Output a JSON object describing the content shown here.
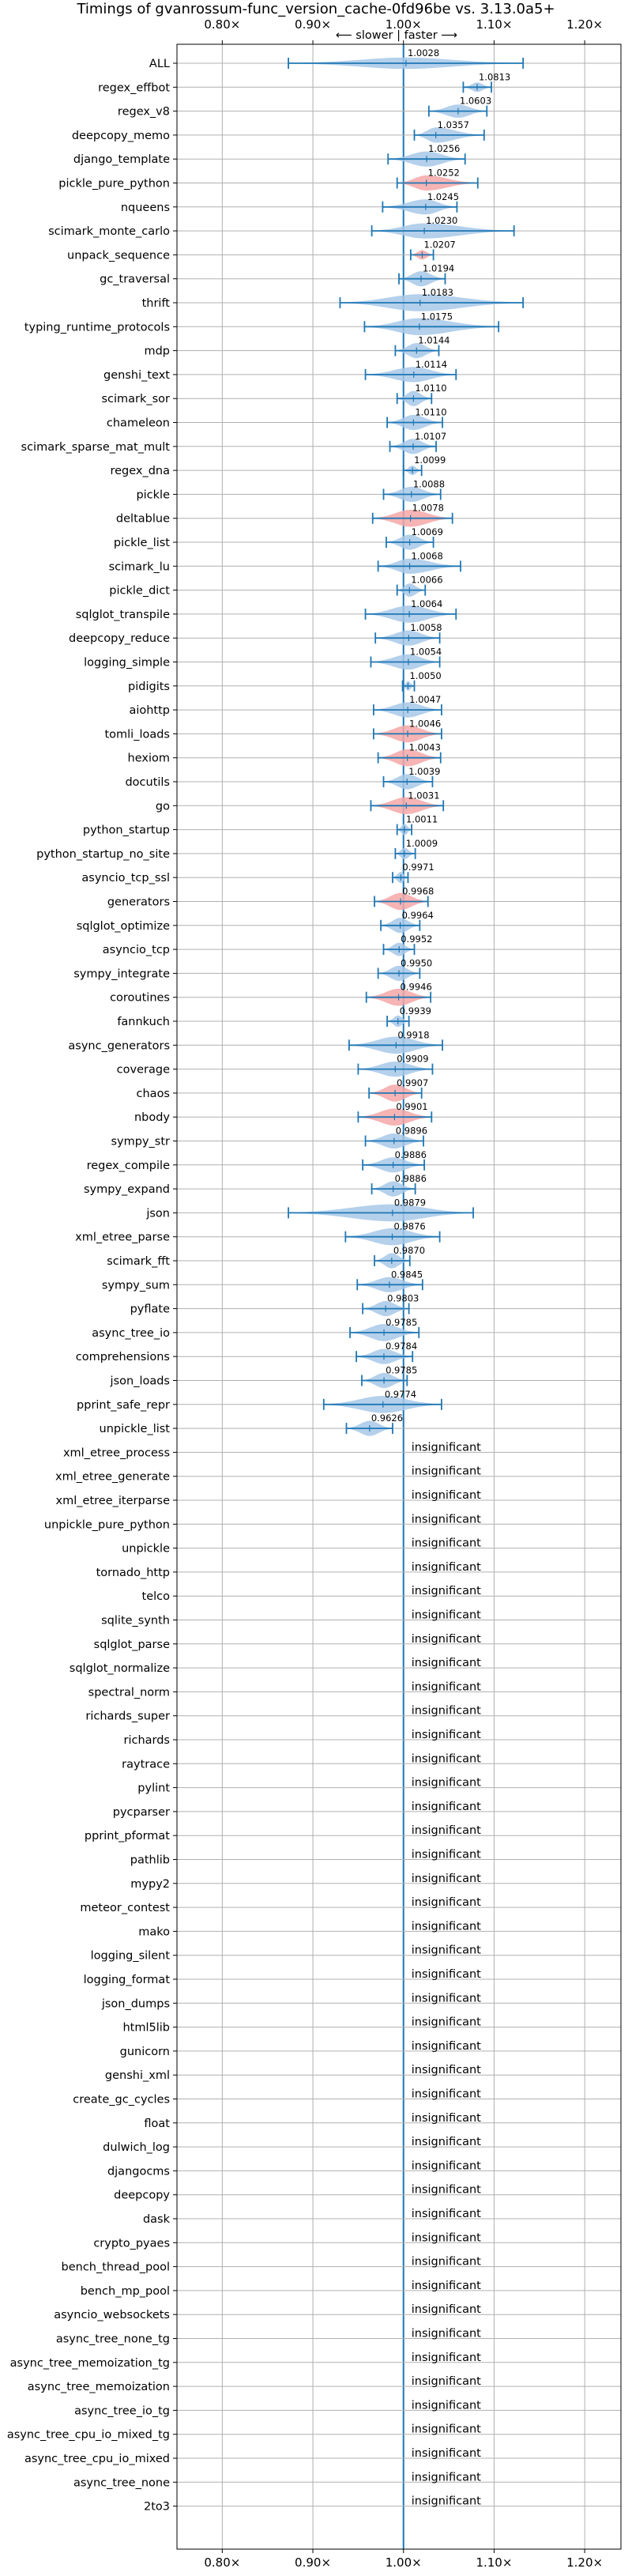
{
  "chart_data": {
    "type": "violin",
    "title": "Timings of gvanrossum-func_version_cache-0fd96be vs. 3.13.0a5+",
    "direction_label": "⟵ slower | faster ⟶",
    "xlim": [
      0.75,
      1.24
    ],
    "x_ticks": [
      0.8,
      0.9,
      1.0,
      1.1,
      1.2
    ],
    "x_tick_labels": [
      "0.80×",
      "0.90×",
      "1.00×",
      "1.10×",
      "1.20×"
    ],
    "grid": true,
    "colors": {
      "faster": "#a7c8e8",
      "slower": "#f4a7a7",
      "line": "#1f77b4",
      "grid": "#b0b0b0"
    },
    "insignificant_label": "insignificant",
    "benchmarks": [
      {
        "name": "ALL",
        "value": 1.0028,
        "label": "1.0028",
        "lo": 0.873,
        "hi": 1.132,
        "width": 0.6,
        "color": "faster"
      },
      {
        "name": "regex_effbot",
        "value": 1.0813,
        "label": "1.0813",
        "lo": 1.066,
        "hi": 1.097,
        "width": 0.5,
        "color": "faster"
      },
      {
        "name": "regex_v8",
        "value": 1.0603,
        "label": "1.0603",
        "lo": 1.028,
        "hi": 1.092,
        "width": 0.7,
        "color": "faster"
      },
      {
        "name": "deepcopy_memo",
        "value": 1.0357,
        "label": "1.0357",
        "lo": 1.012,
        "hi": 1.089,
        "width": 0.8,
        "color": "faster"
      },
      {
        "name": "django_template",
        "value": 1.0256,
        "label": "1.0256",
        "lo": 0.983,
        "hi": 1.068,
        "width": 0.8,
        "color": "faster"
      },
      {
        "name": "pickle_pure_python",
        "value": 1.0252,
        "label": "1.0252",
        "lo": 0.993,
        "hi": 1.082,
        "width": 0.8,
        "color": "slower"
      },
      {
        "name": "nqueens",
        "value": 1.0245,
        "label": "1.0245",
        "lo": 0.977,
        "hi": 1.059,
        "width": 0.8,
        "color": "faster"
      },
      {
        "name": "scimark_monte_carlo",
        "value": 1.023,
        "label": "1.0230",
        "lo": 0.965,
        "hi": 1.122,
        "width": 0.8,
        "color": "faster"
      },
      {
        "name": "unpack_sequence",
        "value": 1.0207,
        "label": "1.0207",
        "lo": 1.008,
        "hi": 1.033,
        "width": 0.5,
        "color": "slower"
      },
      {
        "name": "gc_traversal",
        "value": 1.0194,
        "label": "1.0194",
        "lo": 0.995,
        "hi": 1.046,
        "width": 0.8,
        "color": "faster"
      },
      {
        "name": "thrift",
        "value": 1.0183,
        "label": "1.0183",
        "lo": 0.93,
        "hi": 1.132,
        "width": 0.9,
        "color": "faster"
      },
      {
        "name": "typing_runtime_protocols",
        "value": 1.0175,
        "label": "1.0175",
        "lo": 0.957,
        "hi": 1.105,
        "width": 0.9,
        "color": "faster"
      },
      {
        "name": "mdp",
        "value": 1.0144,
        "label": "1.0144",
        "lo": 0.991,
        "hi": 1.039,
        "width": 0.8,
        "color": "faster"
      },
      {
        "name": "genshi_text",
        "value": 1.0114,
        "label": "1.0114",
        "lo": 0.958,
        "hi": 1.058,
        "width": 0.8,
        "color": "faster"
      },
      {
        "name": "scimark_sor",
        "value": 1.011,
        "label": "1.0110",
        "lo": 0.993,
        "hi": 1.031,
        "width": 0.8,
        "color": "faster"
      },
      {
        "name": "chameleon",
        "value": 1.011,
        "label": "1.0110",
        "lo": 0.982,
        "hi": 1.043,
        "width": 0.8,
        "color": "faster"
      },
      {
        "name": "scimark_sparse_mat_mult",
        "value": 1.0107,
        "label": "1.0107",
        "lo": 0.985,
        "hi": 1.036,
        "width": 0.8,
        "color": "faster"
      },
      {
        "name": "regex_dna",
        "value": 1.0099,
        "label": "1.0099",
        "lo": 1.0,
        "hi": 1.02,
        "width": 0.5,
        "color": "faster"
      },
      {
        "name": "pickle",
        "value": 1.0088,
        "label": "1.0088",
        "lo": 0.978,
        "hi": 1.041,
        "width": 0.8,
        "color": "faster"
      },
      {
        "name": "deltablue",
        "value": 1.0078,
        "label": "1.0078",
        "lo": 0.966,
        "hi": 1.054,
        "width": 0.9,
        "color": "slower"
      },
      {
        "name": "pickle_list",
        "value": 1.0069,
        "label": "1.0069",
        "lo": 0.981,
        "hi": 1.033,
        "width": 0.8,
        "color": "faster"
      },
      {
        "name": "scimark_lu",
        "value": 1.0068,
        "label": "1.0068",
        "lo": 0.972,
        "hi": 1.063,
        "width": 0.8,
        "color": "faster"
      },
      {
        "name": "pickle_dict",
        "value": 1.0066,
        "label": "1.0066",
        "lo": 0.993,
        "hi": 1.024,
        "width": 0.7,
        "color": "faster"
      },
      {
        "name": "sqlglot_transpile",
        "value": 1.0064,
        "label": "1.0064",
        "lo": 0.958,
        "hi": 1.058,
        "width": 0.9,
        "color": "faster"
      },
      {
        "name": "deepcopy_reduce",
        "value": 1.0058,
        "label": "1.0058",
        "lo": 0.969,
        "hi": 1.04,
        "width": 0.8,
        "color": "faster"
      },
      {
        "name": "logging_simple",
        "value": 1.0054,
        "label": "1.0054",
        "lo": 0.964,
        "hi": 1.04,
        "width": 0.8,
        "color": "faster"
      },
      {
        "name": "pidigits",
        "value": 1.005,
        "label": "1.0050",
        "lo": 0.999,
        "hi": 1.012,
        "width": 0.5,
        "color": "faster"
      },
      {
        "name": "aiohttp",
        "value": 1.0047,
        "label": "1.0047",
        "lo": 0.967,
        "hi": 1.042,
        "width": 0.8,
        "color": "faster"
      },
      {
        "name": "tomli_loads",
        "value": 1.0046,
        "label": "1.0046",
        "lo": 0.967,
        "hi": 1.042,
        "width": 0.9,
        "color": "slower"
      },
      {
        "name": "hexiom",
        "value": 1.0043,
        "label": "1.0043",
        "lo": 0.972,
        "hi": 1.041,
        "width": 0.9,
        "color": "slower"
      },
      {
        "name": "docutils",
        "value": 1.0039,
        "label": "1.0039",
        "lo": 0.978,
        "hi": 1.032,
        "width": 0.8,
        "color": "faster"
      },
      {
        "name": "go",
        "value": 1.0031,
        "label": "1.0031",
        "lo": 0.964,
        "hi": 1.044,
        "width": 0.9,
        "color": "slower"
      },
      {
        "name": "python_startup",
        "value": 1.0011,
        "label": "1.0011",
        "lo": 0.993,
        "hi": 1.009,
        "width": 0.6,
        "color": "faster"
      },
      {
        "name": "python_startup_no_site",
        "value": 1.0009,
        "label": "1.0009",
        "lo": 0.991,
        "hi": 1.013,
        "width": 0.6,
        "color": "faster"
      },
      {
        "name": "asyncio_tcp_ssl",
        "value": 0.9971,
        "label": "0.9971",
        "lo": 0.988,
        "hi": 1.005,
        "width": 0.6,
        "color": "faster"
      },
      {
        "name": "generators",
        "value": 0.9968,
        "label": "0.9968",
        "lo": 0.968,
        "hi": 1.027,
        "width": 0.9,
        "color": "slower"
      },
      {
        "name": "sqlglot_optimize",
        "value": 0.9964,
        "label": "0.9964",
        "lo": 0.975,
        "hi": 1.018,
        "width": 0.8,
        "color": "faster"
      },
      {
        "name": "asyncio_tcp",
        "value": 0.9952,
        "label": "0.9952",
        "lo": 0.978,
        "hi": 1.012,
        "width": 0.7,
        "color": "faster"
      },
      {
        "name": "sympy_integrate",
        "value": 0.995,
        "label": "0.9950",
        "lo": 0.972,
        "hi": 1.018,
        "width": 0.8,
        "color": "faster"
      },
      {
        "name": "coroutines",
        "value": 0.9946,
        "label": "0.9946",
        "lo": 0.959,
        "hi": 1.03,
        "width": 0.9,
        "color": "slower"
      },
      {
        "name": "fannkuch",
        "value": 0.9939,
        "label": "0.9939",
        "lo": 0.982,
        "hi": 1.006,
        "width": 0.6,
        "color": "faster"
      },
      {
        "name": "async_generators",
        "value": 0.9918,
        "label": "0.9918",
        "lo": 0.94,
        "hi": 1.043,
        "width": 0.9,
        "color": "faster"
      },
      {
        "name": "coverage",
        "value": 0.9909,
        "label": "0.9909",
        "lo": 0.95,
        "hi": 1.032,
        "width": 0.8,
        "color": "faster"
      },
      {
        "name": "chaos",
        "value": 0.9907,
        "label": "0.9907",
        "lo": 0.962,
        "hi": 1.02,
        "width": 0.9,
        "color": "slower"
      },
      {
        "name": "nbody",
        "value": 0.9901,
        "label": "0.9901",
        "lo": 0.95,
        "hi": 1.031,
        "width": 0.9,
        "color": "slower"
      },
      {
        "name": "sympy_str",
        "value": 0.9896,
        "label": "0.9896",
        "lo": 0.958,
        "hi": 1.022,
        "width": 0.8,
        "color": "faster"
      },
      {
        "name": "regex_compile",
        "value": 0.9886,
        "label": "0.9886",
        "lo": 0.955,
        "hi": 1.023,
        "width": 0.8,
        "color": "faster"
      },
      {
        "name": "sympy_expand",
        "value": 0.9886,
        "label": "0.9886",
        "lo": 0.965,
        "hi": 1.013,
        "width": 0.8,
        "color": "faster"
      },
      {
        "name": "json",
        "value": 0.9879,
        "label": "0.9879",
        "lo": 0.873,
        "hi": 1.077,
        "width": 0.9,
        "color": "faster"
      },
      {
        "name": "xml_etree_parse",
        "value": 0.9876,
        "label": "0.9876",
        "lo": 0.936,
        "hi": 1.04,
        "width": 0.9,
        "color": "faster"
      },
      {
        "name": "scimark_fft",
        "value": 0.987,
        "label": "0.9870",
        "lo": 0.968,
        "hi": 1.007,
        "width": 0.8,
        "color": "faster"
      },
      {
        "name": "sympy_sum",
        "value": 0.9845,
        "label": "0.9845",
        "lo": 0.949,
        "hi": 1.021,
        "width": 0.8,
        "color": "faster"
      },
      {
        "name": "pyflate",
        "value": 0.9803,
        "label": "0.9803",
        "lo": 0.955,
        "hi": 1.006,
        "width": 0.8,
        "color": "faster"
      },
      {
        "name": "async_tree_io",
        "value": 0.9785,
        "label": "0.9785",
        "lo": 0.941,
        "hi": 1.017,
        "width": 0.9,
        "color": "faster"
      },
      {
        "name": "comprehensions",
        "value": 0.9784,
        "label": "0.9784",
        "lo": 0.948,
        "hi": 1.01,
        "width": 0.8,
        "color": "faster"
      },
      {
        "name": "json_loads",
        "value": 0.9785,
        "label": "0.9785",
        "lo": 0.954,
        "hi": 1.004,
        "width": 0.8,
        "color": "faster"
      },
      {
        "name": "pprint_safe_repr",
        "value": 0.9774,
        "label": "0.9774",
        "lo": 0.912,
        "hi": 1.042,
        "width": 0.9,
        "color": "faster"
      },
      {
        "name": "unpickle_list",
        "value": 0.9626,
        "label": "0.9626",
        "lo": 0.937,
        "hi": 0.988,
        "width": 0.8,
        "color": "faster"
      },
      {
        "name": "xml_etree_process",
        "insignificant": true
      },
      {
        "name": "xml_etree_generate",
        "insignificant": true
      },
      {
        "name": "xml_etree_iterparse",
        "insignificant": true
      },
      {
        "name": "unpickle_pure_python",
        "insignificant": true
      },
      {
        "name": "unpickle",
        "insignificant": true
      },
      {
        "name": "tornado_http",
        "insignificant": true
      },
      {
        "name": "telco",
        "insignificant": true
      },
      {
        "name": "sqlite_synth",
        "insignificant": true
      },
      {
        "name": "sqlglot_parse",
        "insignificant": true
      },
      {
        "name": "sqlglot_normalize",
        "insignificant": true
      },
      {
        "name": "spectral_norm",
        "insignificant": true
      },
      {
        "name": "richards_super",
        "insignificant": true
      },
      {
        "name": "richards",
        "insignificant": true
      },
      {
        "name": "raytrace",
        "insignificant": true
      },
      {
        "name": "pylint",
        "insignificant": true
      },
      {
        "name": "pycparser",
        "insignificant": true
      },
      {
        "name": "pprint_pformat",
        "insignificant": true
      },
      {
        "name": "pathlib",
        "insignificant": true
      },
      {
        "name": "mypy2",
        "insignificant": true
      },
      {
        "name": "meteor_contest",
        "insignificant": true
      },
      {
        "name": "mako",
        "insignificant": true
      },
      {
        "name": "logging_silent",
        "insignificant": true
      },
      {
        "name": "logging_format",
        "insignificant": true
      },
      {
        "name": "json_dumps",
        "insignificant": true
      },
      {
        "name": "html5lib",
        "insignificant": true
      },
      {
        "name": "gunicorn",
        "insignificant": true
      },
      {
        "name": "genshi_xml",
        "insignificant": true
      },
      {
        "name": "create_gc_cycles",
        "insignificant": true
      },
      {
        "name": "float",
        "insignificant": true
      },
      {
        "name": "dulwich_log",
        "insignificant": true
      },
      {
        "name": "djangocms",
        "insignificant": true
      },
      {
        "name": "deepcopy",
        "insignificant": true
      },
      {
        "name": "dask",
        "insignificant": true
      },
      {
        "name": "crypto_pyaes",
        "insignificant": true
      },
      {
        "name": "bench_thread_pool",
        "insignificant": true
      },
      {
        "name": "bench_mp_pool",
        "insignificant": true
      },
      {
        "name": "asyncio_websockets",
        "insignificant": true
      },
      {
        "name": "async_tree_none_tg",
        "insignificant": true
      },
      {
        "name": "async_tree_memoization_tg",
        "insignificant": true
      },
      {
        "name": "async_tree_memoization",
        "insignificant": true
      },
      {
        "name": "async_tree_io_tg",
        "insignificant": true
      },
      {
        "name": "async_tree_cpu_io_mixed_tg",
        "insignificant": true
      },
      {
        "name": "async_tree_cpu_io_mixed",
        "insignificant": true
      },
      {
        "name": "async_tree_none",
        "insignificant": true
      },
      {
        "name": "2to3",
        "insignificant": true
      }
    ]
  }
}
